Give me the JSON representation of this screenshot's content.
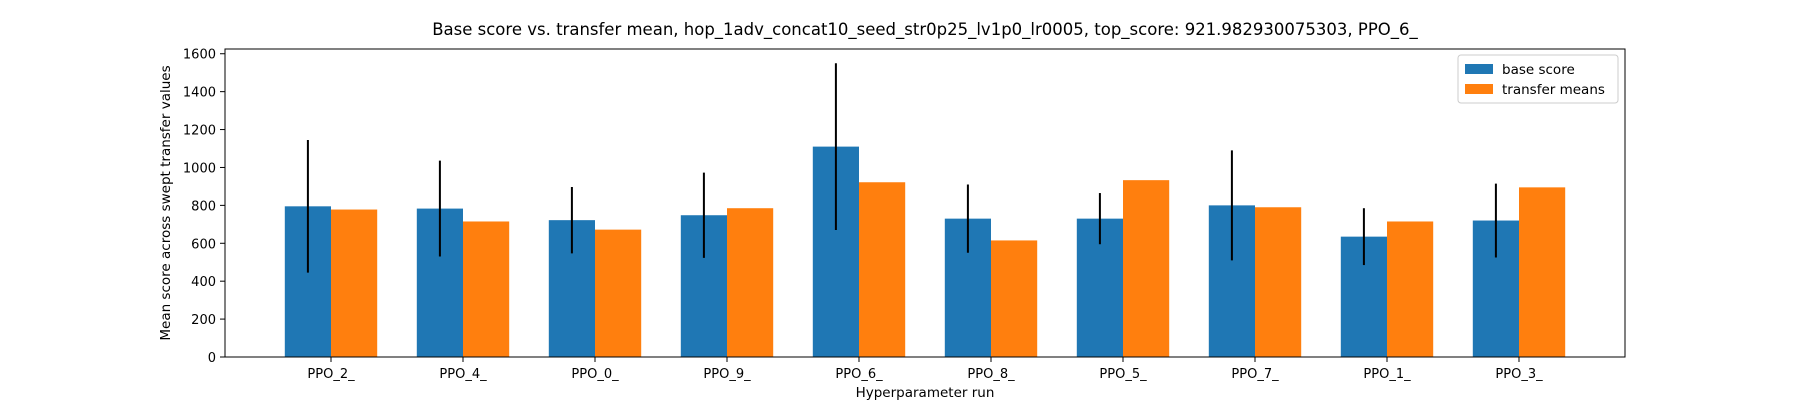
{
  "chart_data": {
    "type": "bar",
    "title": "Base score vs. transfer mean, hop_1adv_concat10_seed_str0p25_lv1p0_lr0005, top_score: 921.982930075303, PPO_6_",
    "xlabel": "Hyperparameter run",
    "ylabel": "Mean score across swept transfer values",
    "categories": [
      "PPO_2_",
      "PPO_4_",
      "PPO_0_",
      "PPO_9_",
      "PPO_6_",
      "PPO_8_",
      "PPO_5_",
      "PPO_7_",
      "PPO_1_",
      "PPO_3_"
    ],
    "series": [
      {
        "name": "base score",
        "color": "#1f77b4",
        "values": [
          795,
          783,
          722,
          748,
          1110,
          730,
          730,
          800,
          635,
          720
        ],
        "error": [
          350,
          253,
          175,
          225,
          440,
          180,
          135,
          290,
          150,
          195
        ]
      },
      {
        "name": "transfer means",
        "color": "#ff7f0e",
        "values": [
          778,
          715,
          672,
          785,
          922,
          615,
          933,
          790,
          715,
          895
        ]
      }
    ],
    "ylim": [
      0,
      1625
    ],
    "yticks": [
      0,
      200,
      400,
      600,
      800,
      1000,
      1200,
      1400,
      1600
    ],
    "legend_position": "top-right",
    "grid": false
  }
}
